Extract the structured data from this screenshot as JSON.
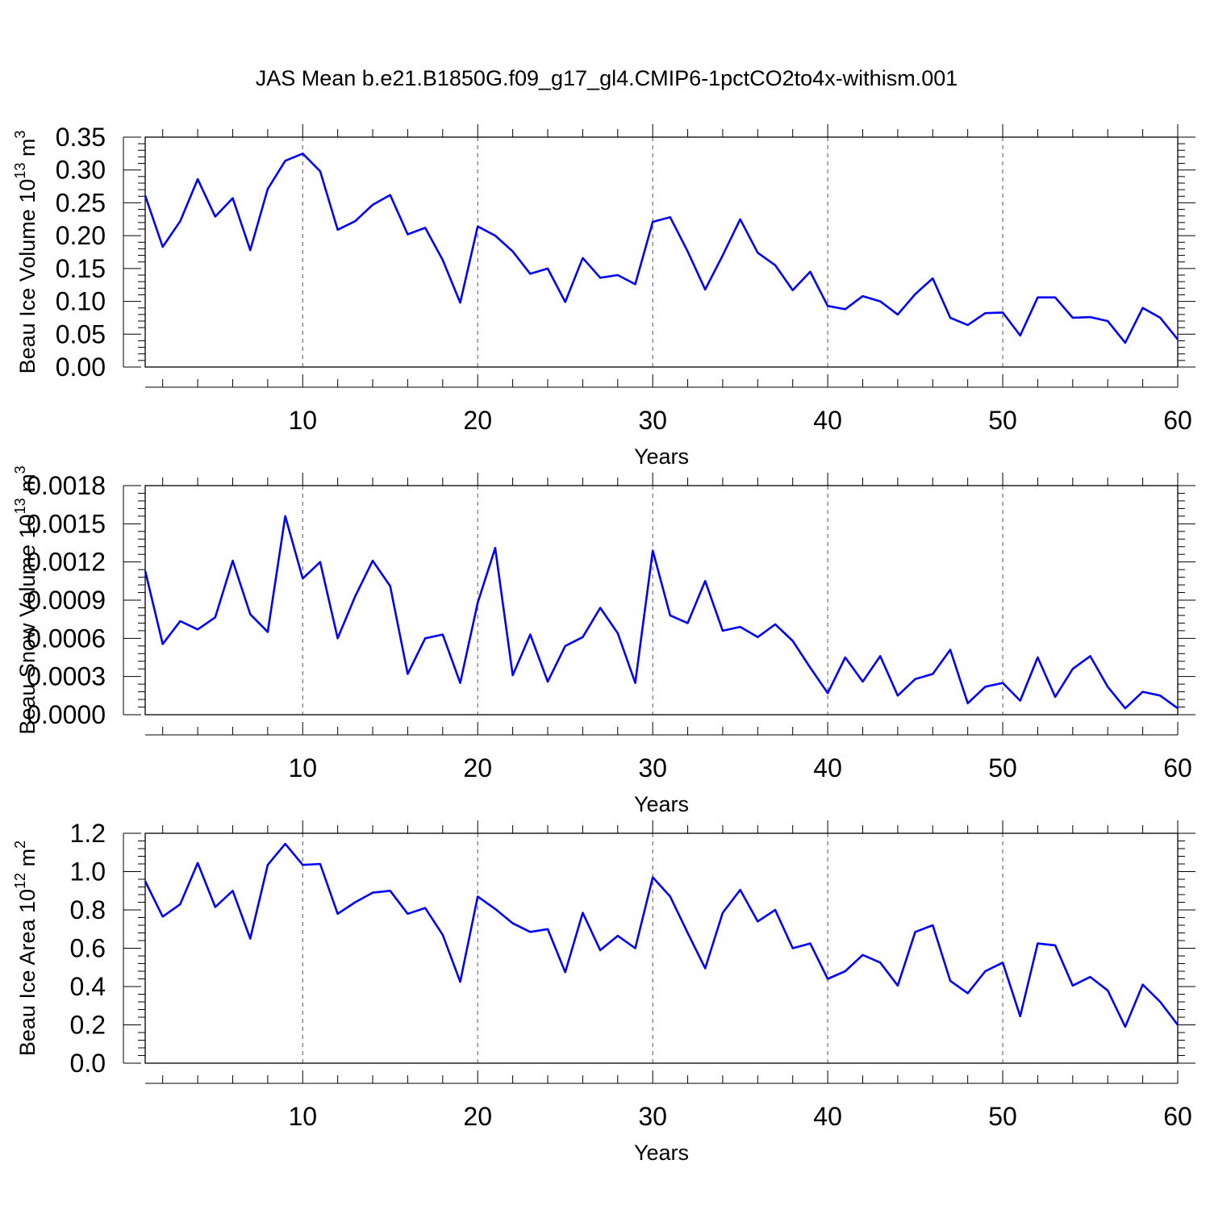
{
  "figure": {
    "title": "JAS Mean b.e21.B1850G.f09_g17_gl4.CMIP6-1pctCO2to4x-withism.001"
  },
  "chart_data": [
    {
      "type": "line",
      "xlabel": "Years",
      "ylabel": {
        "base": "Beau Ice Volume 10",
        "exp": "13",
        "unit": " m",
        "unit_exp": "3"
      },
      "xlim": [
        1,
        60
      ],
      "ylim": [
        0,
        0.35
      ],
      "grid": "x-dashed",
      "xticks": [
        10,
        20,
        30,
        40,
        50,
        60
      ],
      "xtick_labels": [
        "10",
        "20",
        "30",
        "40",
        "50",
        "60"
      ],
      "yticks": [
        0,
        0.05,
        0.1,
        0.15,
        0.2,
        0.25,
        0.3,
        0.35
      ],
      "ytick_labels": [
        "0.00",
        "0.05",
        "0.10",
        "0.15",
        "0.20",
        "0.25",
        "0.30",
        "0.35"
      ],
      "color": "#0000ff",
      "x": [
        1,
        2,
        3,
        4,
        5,
        6,
        7,
        8,
        9,
        10,
        11,
        12,
        13,
        14,
        15,
        16,
        17,
        18,
        19,
        20,
        21,
        22,
        23,
        24,
        25,
        26,
        27,
        28,
        29,
        30,
        31,
        32,
        33,
        34,
        35,
        36,
        37,
        38,
        39,
        40,
        41,
        42,
        43,
        44,
        45,
        46,
        47,
        48,
        49,
        50,
        51,
        52,
        53,
        54,
        55,
        56,
        57,
        58,
        59,
        60
      ],
      "y": [
        0.261,
        0.183,
        0.222,
        0.286,
        0.229,
        0.257,
        0.178,
        0.271,
        0.314,
        0.325,
        0.298,
        0.209,
        0.222,
        0.247,
        0.262,
        0.202,
        0.212,
        0.163,
        0.098,
        0.214,
        0.2,
        0.176,
        0.142,
        0.15,
        0.099,
        0.166,
        0.136,
        0.14,
        0.126,
        0.221,
        0.228,
        0.176,
        0.118,
        0.17,
        0.225,
        0.174,
        0.155,
        0.117,
        0.145,
        0.093,
        0.088,
        0.108,
        0.1,
        0.08,
        0.111,
        0.135,
        0.075,
        0.064,
        0.082,
        0.083,
        0.048,
        0.106,
        0.106,
        0.075,
        0.076,
        0.07,
        0.037,
        0.09,
        0.075,
        0.042
      ]
    },
    {
      "type": "line",
      "xlabel": "Years",
      "ylabel": {
        "base": "Beau Snow Volume 10",
        "exp": "13",
        "unit": " m",
        "unit_exp": "3"
      },
      "xlim": [
        1,
        60
      ],
      "ylim": [
        0,
        0.0018
      ],
      "grid": "x-dashed",
      "xticks": [
        10,
        20,
        30,
        40,
        50,
        60
      ],
      "xtick_labels": [
        "10",
        "20",
        "30",
        "40",
        "50",
        "60"
      ],
      "yticks": [
        0,
        0.0003,
        0.0006,
        0.0009,
        0.0012,
        0.0015,
        0.0018
      ],
      "ytick_labels": [
        "0.0000",
        "0.0003",
        "0.0006",
        "0.0009",
        "0.0012",
        "0.0015",
        "0.0018"
      ],
      "color": "#0000ff",
      "x": [
        1,
        2,
        3,
        4,
        5,
        6,
        7,
        8,
        9,
        10,
        11,
        12,
        13,
        14,
        15,
        16,
        17,
        18,
        19,
        20,
        21,
        22,
        23,
        24,
        25,
        26,
        27,
        28,
        29,
        30,
        31,
        32,
        33,
        34,
        35,
        36,
        37,
        38,
        39,
        40,
        41,
        42,
        43,
        44,
        45,
        46,
        47,
        48,
        49,
        50,
        51,
        52,
        53,
        54,
        55,
        56,
        57,
        58,
        59,
        60
      ],
      "y": [
        0.00113,
        0.000555,
        0.000735,
        0.00067,
        0.000765,
        0.00121,
        0.00079,
        0.00065,
        0.00156,
        0.00107,
        0.0012,
        0.0006,
        0.00093,
        0.00121,
        0.00101,
        0.00032,
        0.0006,
        0.00063,
        0.00025,
        0.00088,
        0.00131,
        0.00031,
        0.00063,
        0.00026,
        0.00054,
        0.00061,
        0.00084,
        0.00064,
        0.00025,
        0.00129,
        0.00078,
        0.00072,
        0.00105,
        0.00066,
        0.00069,
        0.00061,
        0.00071,
        0.00058,
        0.00037,
        0.00017,
        0.00045,
        0.00026,
        0.00046,
        0.00015,
        0.00028,
        0.00032,
        0.00051,
        9e-05,
        0.00022,
        0.00025,
        0.00011,
        0.00045,
        0.00014,
        0.00036,
        0.00046,
        0.00022,
        5e-05,
        0.00018,
        0.00015,
        5e-05
      ]
    },
    {
      "type": "line",
      "xlabel": "Years",
      "ylabel": {
        "base": "Beau Ice Area 10",
        "exp": "12",
        "unit": " m",
        "unit_exp": "2"
      },
      "xlim": [
        1,
        60
      ],
      "ylim": [
        0,
        1.2
      ],
      "grid": "x-dashed",
      "xticks": [
        10,
        20,
        30,
        40,
        50,
        60
      ],
      "xtick_labels": [
        "10",
        "20",
        "30",
        "40",
        "50",
        "60"
      ],
      "yticks": [
        0,
        0.2,
        0.4,
        0.6,
        0.8,
        1.0,
        1.2
      ],
      "ytick_labels": [
        "0.0",
        "0.2",
        "0.4",
        "0.6",
        "0.8",
        "1.0",
        "1.2"
      ],
      "color": "#0000ff",
      "x": [
        1,
        2,
        3,
        4,
        5,
        6,
        7,
        8,
        9,
        10,
        11,
        12,
        13,
        14,
        15,
        16,
        17,
        18,
        19,
        20,
        21,
        22,
        23,
        24,
        25,
        26,
        27,
        28,
        29,
        30,
        31,
        32,
        33,
        34,
        35,
        36,
        37,
        38,
        39,
        40,
        41,
        42,
        43,
        44,
        45,
        46,
        47,
        48,
        49,
        50,
        51,
        52,
        53,
        54,
        55,
        56,
        57,
        58,
        59,
        60
      ],
      "y": [
        0.95,
        0.765,
        0.83,
        1.045,
        0.815,
        0.9,
        0.65,
        1.035,
        1.145,
        1.035,
        1.04,
        0.78,
        0.84,
        0.89,
        0.9,
        0.78,
        0.81,
        0.67,
        0.425,
        0.87,
        0.805,
        0.73,
        0.685,
        0.7,
        0.475,
        0.785,
        0.59,
        0.665,
        0.6,
        0.97,
        0.87,
        0.68,
        0.495,
        0.785,
        0.905,
        0.74,
        0.8,
        0.6,
        0.625,
        0.44,
        0.48,
        0.565,
        0.525,
        0.405,
        0.685,
        0.72,
        0.43,
        0.365,
        0.48,
        0.525,
        0.245,
        0.625,
        0.615,
        0.405,
        0.45,
        0.38,
        0.19,
        0.41,
        0.32,
        0.2
      ]
    }
  ]
}
